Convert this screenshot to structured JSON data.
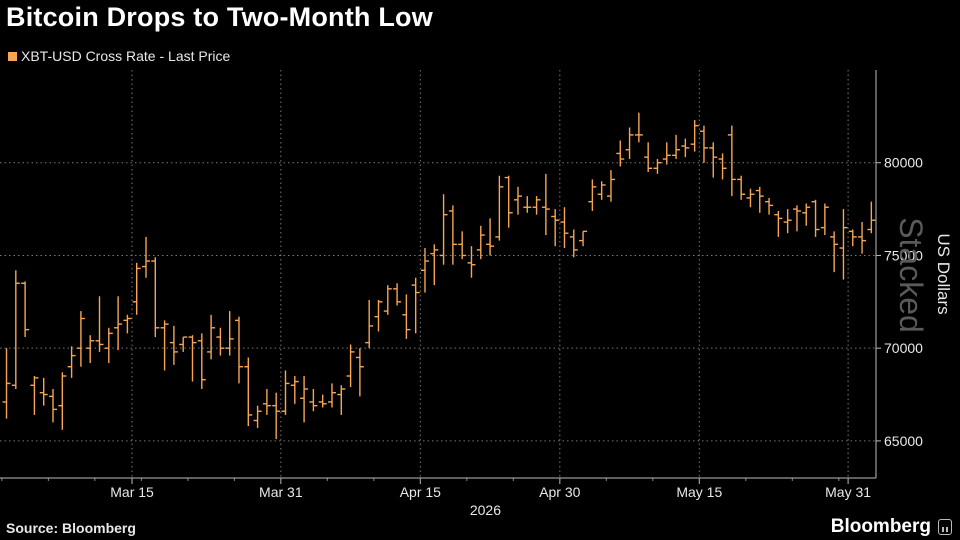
{
  "header": {
    "title": "Bitcoin Drops to Two-Month Low"
  },
  "legend": {
    "label": "XBT-USD Cross Rate - Last Price"
  },
  "footer": {
    "source": "Source: Bloomberg",
    "brand": "Bloomberg"
  },
  "watermark": "Stacked",
  "colors": {
    "series": "#f7a552",
    "background": "#000000",
    "grid": "#777777",
    "text": "#e8e8e8"
  },
  "chart_data": {
    "type": "ohlc",
    "title": "Bitcoin Drops to Two-Month Low",
    "ylabel": "US Dollars",
    "xlabel_year": "2026",
    "ylim": [
      63000,
      85000
    ],
    "yticks": [
      65000,
      70000,
      75000,
      80000
    ],
    "xticks": [
      "Mar 15",
      "Mar 31",
      "Apr 15",
      "Apr 30",
      "May 15",
      "May 31"
    ],
    "xrange": [
      "Mar 1",
      "Jun 3"
    ],
    "grid": true,
    "legend_position": "top-left",
    "series": [
      {
        "name": "XBT-USD Cross Rate - Last Price",
        "points": [
          {
            "d": "Mar 1",
            "o": 67100,
            "h": 70000,
            "l": 66200,
            "c": 68100
          },
          {
            "d": "Mar 2",
            "o": 68000,
            "h": 74200,
            "l": 67800,
            "c": 73500
          },
          {
            "d": "Mar 3",
            "o": 73500,
            "h": 73600,
            "l": 70600,
            "c": 71000
          },
          {
            "d": "Mar 4",
            "o": 68000,
            "h": 68500,
            "l": 66400,
            "c": 68400
          },
          {
            "d": "Mar 5",
            "o": 67600,
            "h": 68400,
            "l": 66900,
            "c": 67500
          },
          {
            "d": "Mar 6",
            "o": 67400,
            "h": 67800,
            "l": 66000,
            "c": 66700
          },
          {
            "d": "Mar 7",
            "o": 66900,
            "h": 68700,
            "l": 65600,
            "c": 68500
          },
          {
            "d": "Mar 8",
            "o": 69000,
            "h": 70100,
            "l": 68400,
            "c": 69600
          },
          {
            "d": "Mar 9",
            "o": 70000,
            "h": 72000,
            "l": 69000,
            "c": 71600
          },
          {
            "d": "Mar 10",
            "o": 70000,
            "h": 70700,
            "l": 69200,
            "c": 70400
          },
          {
            "d": "Mar 11",
            "o": 70400,
            "h": 72800,
            "l": 69800,
            "c": 70200
          },
          {
            "d": "Mar 12",
            "o": 70000,
            "h": 71100,
            "l": 69200,
            "c": 70800
          },
          {
            "d": "Mar 13",
            "o": 71100,
            "h": 72800,
            "l": 69900,
            "c": 71300
          },
          {
            "d": "Mar 14",
            "o": 71500,
            "h": 71800,
            "l": 70800,
            "c": 71600
          },
          {
            "d": "Mar 15",
            "o": 72500,
            "h": 74600,
            "l": 71800,
            "c": 74300
          },
          {
            "d": "Mar 16",
            "o": 74400,
            "h": 76000,
            "l": 73800,
            "c": 74700
          },
          {
            "d": "Mar 17",
            "o": 74700,
            "h": 74900,
            "l": 70600,
            "c": 71100
          },
          {
            "d": "Mar 18",
            "o": 71100,
            "h": 71500,
            "l": 68800,
            "c": 71300
          },
          {
            "d": "Mar 19",
            "o": 70300,
            "h": 71200,
            "l": 69100,
            "c": 69800
          },
          {
            "d": "Mar 20",
            "o": 70200,
            "h": 70600,
            "l": 69800,
            "c": 70600
          },
          {
            "d": "Mar 21",
            "o": 70600,
            "h": 70700,
            "l": 68200,
            "c": 70300
          },
          {
            "d": "Mar 22",
            "o": 70400,
            "h": 70800,
            "l": 67800,
            "c": 68300
          },
          {
            "d": "Mar 23",
            "o": 69800,
            "h": 71800,
            "l": 69400,
            "c": 71100
          },
          {
            "d": "Mar 24",
            "o": 70600,
            "h": 71100,
            "l": 69600,
            "c": 70000
          },
          {
            "d": "Mar 25",
            "o": 70000,
            "h": 72000,
            "l": 69600,
            "c": 70500
          },
          {
            "d": "Mar 26",
            "o": 71500,
            "h": 71700,
            "l": 68100,
            "c": 69000
          },
          {
            "d": "Mar 27",
            "o": 69000,
            "h": 69500,
            "l": 65800,
            "c": 66400
          },
          {
            "d": "Mar 28",
            "o": 66100,
            "h": 66900,
            "l": 65700,
            "c": 66600
          },
          {
            "d": "Mar 29",
            "o": 67000,
            "h": 67800,
            "l": 66400,
            "c": 66900
          },
          {
            "d": "Mar 30",
            "o": 66900,
            "h": 67600,
            "l": 65100,
            "c": 66600
          },
          {
            "d": "Mar 31",
            "o": 66600,
            "h": 68800,
            "l": 66400,
            "c": 68100
          },
          {
            "d": "Apr 1",
            "o": 68000,
            "h": 68500,
            "l": 67000,
            "c": 68200
          },
          {
            "d": "Apr 2",
            "o": 67300,
            "h": 68500,
            "l": 66000,
            "c": 67800
          },
          {
            "d": "Apr 3",
            "o": 67100,
            "h": 67800,
            "l": 66600,
            "c": 66900
          },
          {
            "d": "Apr 4",
            "o": 67100,
            "h": 67500,
            "l": 66800,
            "c": 67000
          },
          {
            "d": "Apr 5",
            "o": 67100,
            "h": 68100,
            "l": 66800,
            "c": 67600
          },
          {
            "d": "Apr 6",
            "o": 67500,
            "h": 68000,
            "l": 66400,
            "c": 67800
          },
          {
            "d": "Apr 7",
            "o": 68500,
            "h": 70200,
            "l": 67900,
            "c": 69800
          },
          {
            "d": "Apr 8",
            "o": 69500,
            "h": 70000,
            "l": 67400,
            "c": 69000
          },
          {
            "d": "Apr 9",
            "o": 70300,
            "h": 72600,
            "l": 70000,
            "c": 71200
          },
          {
            "d": "Apr 10",
            "o": 71700,
            "h": 72600,
            "l": 70900,
            "c": 72500
          },
          {
            "d": "Apr 11",
            "o": 72000,
            "h": 73400,
            "l": 71800,
            "c": 73200
          },
          {
            "d": "Apr 12",
            "o": 73200,
            "h": 73500,
            "l": 72300,
            "c": 72500
          },
          {
            "d": "Apr 13",
            "o": 71800,
            "h": 72900,
            "l": 70500,
            "c": 71000
          },
          {
            "d": "Apr 14",
            "o": 73400,
            "h": 73800,
            "l": 70800,
            "c": 73000
          },
          {
            "d": "Apr 15",
            "o": 74200,
            "h": 75400,
            "l": 73000,
            "c": 74700
          },
          {
            "d": "Apr 16",
            "o": 75100,
            "h": 75600,
            "l": 73400,
            "c": 75300
          },
          {
            "d": "Apr 17",
            "o": 75000,
            "h": 78300,
            "l": 74500,
            "c": 77200
          },
          {
            "d": "Apr 18",
            "o": 77400,
            "h": 77700,
            "l": 74500,
            "c": 75600
          },
          {
            "d": "Apr 19",
            "o": 75600,
            "h": 76300,
            "l": 74800,
            "c": 75000
          },
          {
            "d": "Apr 20",
            "o": 74600,
            "h": 75500,
            "l": 73800,
            "c": 74500
          },
          {
            "d": "Apr 21",
            "o": 75300,
            "h": 76600,
            "l": 74800,
            "c": 76100
          },
          {
            "d": "Apr 22",
            "o": 75600,
            "h": 77000,
            "l": 75000,
            "c": 75500
          },
          {
            "d": "Apr 23",
            "o": 76000,
            "h": 79300,
            "l": 75800,
            "c": 78700
          },
          {
            "d": "Apr 24",
            "o": 79200,
            "h": 79300,
            "l": 76500,
            "c": 77300
          },
          {
            "d": "Apr 25",
            "o": 78000,
            "h": 78700,
            "l": 77200,
            "c": 78200
          },
          {
            "d": "Apr 26",
            "o": 77600,
            "h": 78200,
            "l": 77300,
            "c": 77600
          },
          {
            "d": "Apr 27",
            "o": 77600,
            "h": 78200,
            "l": 77200,
            "c": 78000
          },
          {
            "d": "Apr 28",
            "o": 77600,
            "h": 79400,
            "l": 76100,
            "c": 77500
          },
          {
            "d": "Apr 29",
            "o": 77100,
            "h": 77500,
            "l": 75500,
            "c": 76900
          },
          {
            "d": "Apr 30",
            "o": 76800,
            "h": 77600,
            "l": 75400,
            "c": 76200
          },
          {
            "d": "May 1",
            "o": 76000,
            "h": 76400,
            "l": 74900,
            "c": 75300
          },
          {
            "d": "May 2",
            "o": 75800,
            "h": 76300,
            "l": 75500,
            "c": 76300
          },
          {
            "d": "May 3",
            "o": 77900,
            "h": 79100,
            "l": 77400,
            "c": 78700
          },
          {
            "d": "May 4",
            "o": 78300,
            "h": 79000,
            "l": 78000,
            "c": 78800
          },
          {
            "d": "May 5",
            "o": 78200,
            "h": 79600,
            "l": 77900,
            "c": 79100
          },
          {
            "d": "May 6",
            "o": 80500,
            "h": 81200,
            "l": 79800,
            "c": 80200
          },
          {
            "d": "May 7",
            "o": 80700,
            "h": 81900,
            "l": 80200,
            "c": 81500
          },
          {
            "d": "May 8",
            "o": 81500,
            "h": 82700,
            "l": 81100,
            "c": 81500
          },
          {
            "d": "May 9",
            "o": 80300,
            "h": 81100,
            "l": 79500,
            "c": 79700
          },
          {
            "d": "May 10",
            "o": 79700,
            "h": 80200,
            "l": 79400,
            "c": 80000
          },
          {
            "d": "May 11",
            "o": 80200,
            "h": 81100,
            "l": 79900,
            "c": 80400
          },
          {
            "d": "May 12",
            "o": 80400,
            "h": 81500,
            "l": 80200,
            "c": 80700
          },
          {
            "d": "May 13",
            "o": 80900,
            "h": 81300,
            "l": 80300,
            "c": 80800
          },
          {
            "d": "May 14",
            "o": 81000,
            "h": 82300,
            "l": 80600,
            "c": 82000
          },
          {
            "d": "May 15",
            "o": 81700,
            "h": 82000,
            "l": 80000,
            "c": 80800
          },
          {
            "d": "May 16",
            "o": 80800,
            "h": 81100,
            "l": 79200,
            "c": 80300
          },
          {
            "d": "May 17",
            "o": 80200,
            "h": 80500,
            "l": 79100,
            "c": 79700
          },
          {
            "d": "May 18",
            "o": 81500,
            "h": 82000,
            "l": 78200,
            "c": 79100
          },
          {
            "d": "May 19",
            "o": 79100,
            "h": 79300,
            "l": 78000,
            "c": 78300
          },
          {
            "d": "May 20",
            "o": 78100,
            "h": 78600,
            "l": 77600,
            "c": 78300
          },
          {
            "d": "May 21",
            "o": 78500,
            "h": 78700,
            "l": 77300,
            "c": 78200
          },
          {
            "d": "May 22",
            "o": 77900,
            "h": 78100,
            "l": 77200,
            "c": 77700
          },
          {
            "d": "May 23",
            "o": 77200,
            "h": 77400,
            "l": 76000,
            "c": 77000
          },
          {
            "d": "May 24",
            "o": 76800,
            "h": 77500,
            "l": 76200,
            "c": 76900
          },
          {
            "d": "May 25",
            "o": 77500,
            "h": 77700,
            "l": 76300,
            "c": 77400
          },
          {
            "d": "May 26",
            "o": 77300,
            "h": 77800,
            "l": 76600,
            "c": 77600
          },
          {
            "d": "May 27",
            "o": 77900,
            "h": 78000,
            "l": 76000,
            "c": 76400
          },
          {
            "d": "May 28",
            "o": 76500,
            "h": 77800,
            "l": 76100,
            "c": 77600
          },
          {
            "d": "May 29",
            "o": 76000,
            "h": 76300,
            "l": 74100,
            "c": 75600
          },
          {
            "d": "May 30",
            "o": 75400,
            "h": 77500,
            "l": 73700,
            "c": 76500
          },
          {
            "d": "May 31",
            "o": 76300,
            "h": 76400,
            "l": 75500,
            "c": 76000
          },
          {
            "d": "Jun 1",
            "o": 76000,
            "h": 76800,
            "l": 75100,
            "c": 75800
          },
          {
            "d": "Jun 2",
            "o": 76400,
            "h": 77900,
            "l": 76200,
            "c": 76900
          }
        ]
      }
    ]
  },
  "axis": {
    "ylabel": "US Dollars",
    "year": "2026"
  }
}
